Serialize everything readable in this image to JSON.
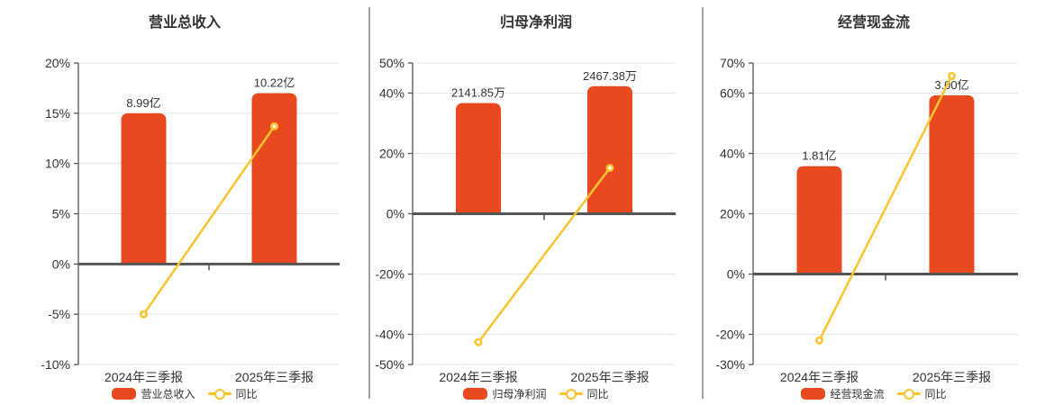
{
  "page": {
    "background": "#ffffff"
  },
  "colors": {
    "bar": "#E8491F",
    "line": "#FBC42D",
    "grid": "#E1E6F0",
    "axis": "#555555",
    "text": "#333333",
    "divider": "#A5A5A5"
  },
  "charts": [
    {
      "title": "营业总收入",
      "legend_bar_label": "营业总收入",
      "legend_line_label": "同比",
      "chart_data": {
        "type": "bar",
        "categories": [
          "2024年三季报",
          "2025年三季报"
        ],
        "series": [
          {
            "name": "营业总收入",
            "type": "bar",
            "values": [
              "8.99亿",
              "10.22亿"
            ],
            "bar_top_plotted_pct": [
              15.0,
              17.0
            ]
          },
          {
            "name": "同比",
            "type": "line",
            "values_pct": [
              -5.0,
              13.7
            ]
          }
        ],
        "ylim": [
          -10,
          20
        ],
        "yticks": [
          20,
          15,
          10,
          5,
          0,
          -5,
          -10
        ],
        "ytick_suffix": "%",
        "grid": "on",
        "legend_position": "bottom"
      }
    },
    {
      "title": "归母净利润",
      "legend_bar_label": "归母净利润",
      "legend_line_label": "同比",
      "chart_data": {
        "type": "bar",
        "categories": [
          "2024年三季报",
          "2025年三季报"
        ],
        "series": [
          {
            "name": "归母净利润",
            "type": "bar",
            "values": [
              "2141.85万",
              "2467.38万"
            ],
            "bar_top_plotted_pct": [
              36.7,
              42.3
            ]
          },
          {
            "name": "同比",
            "type": "line",
            "values_pct": [
              -42.6,
              15.2
            ]
          }
        ],
        "ylim": [
          -50,
          50
        ],
        "yticks": [
          50,
          40,
          20,
          0,
          -20,
          -40,
          -50
        ],
        "ytick_suffix": "%",
        "grid": "on",
        "legend_position": "bottom"
      }
    },
    {
      "title": "经营现金流",
      "legend_bar_label": "经营现金流",
      "legend_line_label": "同比",
      "chart_data": {
        "type": "bar",
        "categories": [
          "2024年三季报",
          "2025年三季报"
        ],
        "series": [
          {
            "name": "经营现金流",
            "type": "bar",
            "values": [
              "1.81亿",
              "3.00亿"
            ],
            "bar_top_plotted_pct": [
              35.8,
              59.3
            ]
          },
          {
            "name": "同比",
            "type": "line",
            "values_pct": [
              -22.0,
              65.7
            ]
          }
        ],
        "ylim": [
          -30,
          70
        ],
        "yticks": [
          70,
          60,
          40,
          20,
          0,
          -20,
          -30
        ],
        "ytick_suffix": "%",
        "grid": "on",
        "legend_position": "bottom"
      }
    }
  ]
}
